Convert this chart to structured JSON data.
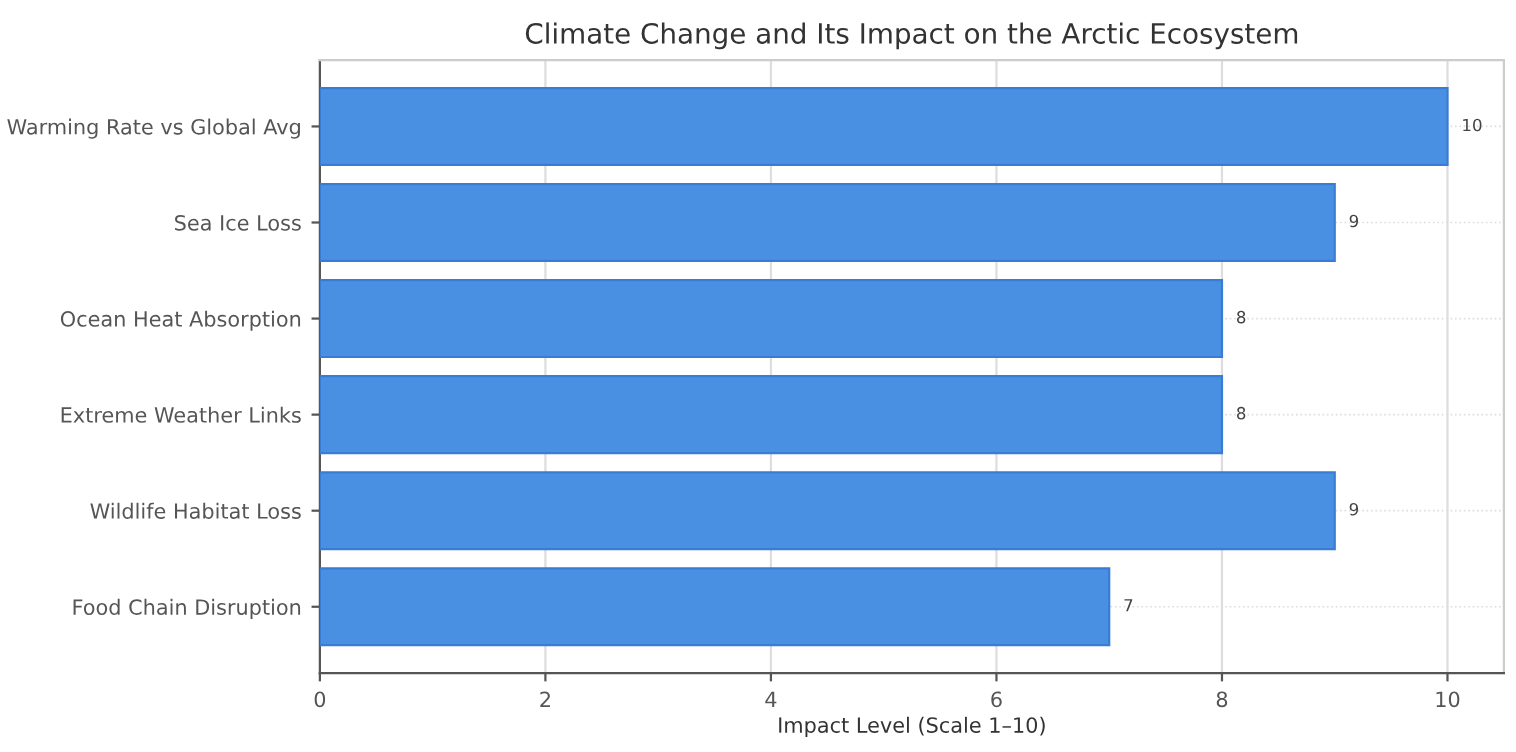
{
  "chart_data": {
    "type": "bar",
    "orientation": "horizontal",
    "title": "Climate Change and Its Impact on the Arctic Ecosystem",
    "xlabel": "Impact Level (Scale 1–10)",
    "categories": [
      "Warming Rate vs Global Avg",
      "Sea Ice Loss",
      "Ocean Heat Absorption",
      "Extreme Weather Links",
      "Wildlife Habitat Loss",
      "Food Chain Disruption"
    ],
    "values": [
      10,
      9,
      8,
      8,
      9,
      7
    ],
    "color": "#4a90e2",
    "data_labels": true,
    "xlim": [
      0,
      10.5
    ],
    "xticks": [
      0,
      2,
      4,
      6,
      8,
      10
    ],
    "grid": true
  }
}
